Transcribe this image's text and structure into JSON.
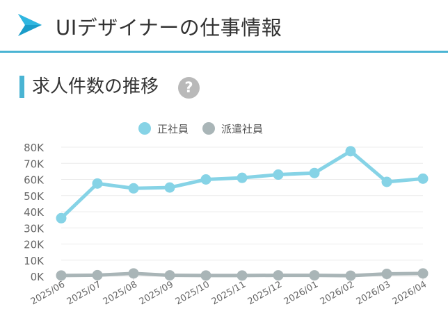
{
  "header": {
    "title": "UIデザイナーの仕事情報"
  },
  "section": {
    "title": "求人件数の推移",
    "help_icon": "?"
  },
  "colors": {
    "accent": "#4ab4d3",
    "fulltime": "#86d3e6",
    "dispatch": "#a9b5b7"
  },
  "chart_data": {
    "type": "line",
    "categories": [
      "2025/06",
      "2025/07",
      "2025/08",
      "2025/09",
      "2025/10",
      "2025/11",
      "2025/12",
      "2026/01",
      "2026/02",
      "2026/03",
      "2026/04"
    ],
    "series": [
      {
        "name": "正社員",
        "values": [
          36000,
          57500,
          54500,
          55000,
          60000,
          61000,
          63000,
          64000,
          77500,
          58500,
          60500
        ]
      },
      {
        "name": "派遣社員",
        "values": [
          500,
          700,
          1800,
          600,
          500,
          500,
          600,
          600,
          400,
          1500,
          1800
        ]
      }
    ],
    "yticks": [
      "0K",
      "10K",
      "20K",
      "30K",
      "40K",
      "50K",
      "60K",
      "70K",
      "80K"
    ],
    "ylim": [
      0,
      80000
    ],
    "legend_position": "top-center",
    "grid": true
  }
}
